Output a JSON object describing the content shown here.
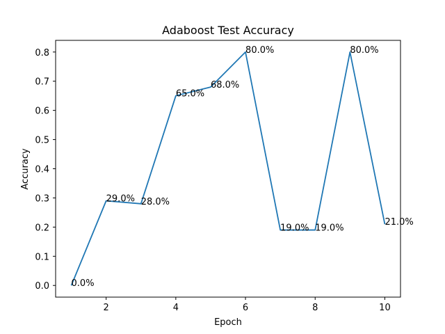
{
  "chart_data": {
    "type": "line",
    "title": "Adaboost Test Accuracy",
    "xlabel": "Epoch",
    "ylabel": "Accuracy",
    "x": [
      1,
      2,
      3,
      4,
      5,
      6,
      7,
      8,
      9,
      10
    ],
    "series": [
      {
        "values": [
          0.0,
          0.29,
          0.28,
          0.65,
          0.68,
          0.8,
          0.19,
          0.19,
          0.8,
          0.21
        ],
        "color": "#1f77b4"
      }
    ],
    "data_labels": [
      "0.0%",
      "29.0%",
      "28.0%",
      "65.0%",
      "68.0%",
      "80.0%",
      "19.0%",
      "19.0%",
      "80.0%",
      "21.0%"
    ],
    "xlim": [
      0.55,
      10.45
    ],
    "ylim": [
      -0.04,
      0.84
    ],
    "x_ticks": [
      2,
      4,
      6,
      8,
      10
    ],
    "x_tick_labels": [
      "2",
      "4",
      "6",
      "8",
      "10"
    ],
    "y_ticks": [
      0.0,
      0.1,
      0.2,
      0.3,
      0.4,
      0.5,
      0.6,
      0.7,
      0.8
    ],
    "y_tick_labels": [
      "0.0",
      "0.1",
      "0.2",
      "0.3",
      "0.4",
      "0.5",
      "0.6",
      "0.7",
      "0.8"
    ],
    "grid": false,
    "legend": "none"
  }
}
